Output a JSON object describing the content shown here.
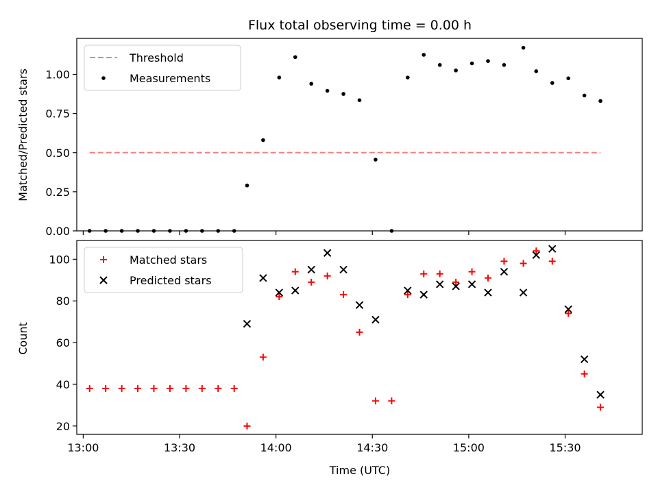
{
  "figure": {
    "title": "Flux total observing time = 0.00 h",
    "xlabel": "Time (UTC)"
  },
  "chart_data": [
    {
      "type": "scatter",
      "ylabel": "Matched/Predicted stars",
      "x_axis": {
        "unit": "time",
        "range": [
          "12:58",
          "15:54"
        ],
        "tick_labels": [
          "13:00",
          "13:30",
          "14:00",
          "14:30",
          "15:00",
          "15:30"
        ],
        "tick_labels_shown": false
      },
      "ylim": [
        0,
        1.23
      ],
      "yticks": [
        0,
        0.25,
        0.5,
        0.75,
        1.0
      ],
      "ytick_labels": [
        "0.00",
        "0.25",
        "0.50",
        "0.75",
        "1.00"
      ],
      "legend": {
        "placement": "upper-left",
        "entries": [
          "Threshold",
          "Measurements"
        ]
      },
      "series": [
        {
          "name": "Threshold",
          "style": "dashed-line",
          "color": "#f08080",
          "x": [
            "13:02",
            "15:41"
          ],
          "y": [
            0.5,
            0.5
          ]
        },
        {
          "name": "Measurements",
          "style": "dot",
          "color": "#000000",
          "x": [
            "13:02",
            "13:07",
            "13:12",
            "13:17",
            "13:22",
            "13:27",
            "13:32",
            "13:37",
            "13:42",
            "13:47",
            "13:51",
            "13:56",
            "14:01",
            "14:06",
            "14:11",
            "14:16",
            "14:21",
            "14:26",
            "14:31",
            "14:36",
            "14:41",
            "14:46",
            "14:51",
            "14:56",
            "15:01",
            "15:06",
            "15:11",
            "15:17",
            "15:21",
            "15:26",
            "15:31",
            "15:36",
            "15:41"
          ],
          "y": [
            0,
            0,
            0,
            0,
            0,
            0,
            0,
            0,
            0,
            0,
            0.29,
            0.58,
            0.98,
            1.11,
            0.94,
            0.895,
            0.875,
            0.835,
            0.455,
            0,
            0.98,
            1.125,
            1.06,
            1.025,
            1.07,
            1.085,
            1.06,
            1.17,
            1.02,
            0.945,
            0.975,
            0.865,
            0.83
          ]
        }
      ]
    },
    {
      "type": "scatter",
      "ylabel": "Count",
      "x_axis": {
        "unit": "time",
        "range": [
          "12:58",
          "15:54"
        ],
        "tick_labels": [
          "13:00",
          "13:30",
          "14:00",
          "14:30",
          "15:00",
          "15:30"
        ]
      },
      "ylim": [
        16,
        109
      ],
      "yticks": [
        20,
        40,
        60,
        80,
        100
      ],
      "ytick_labels": [
        "20",
        "40",
        "60",
        "80",
        "100"
      ],
      "legend": {
        "placement": "upper-left",
        "entries": [
          "Matched stars",
          "Predicted stars"
        ]
      },
      "series": [
        {
          "name": "Matched stars",
          "marker": "plus",
          "color": "#ff0000",
          "x": [
            "13:02",
            "13:07",
            "13:12",
            "13:17",
            "13:22",
            "13:27",
            "13:32",
            "13:37",
            "13:42",
            "13:47",
            "13:51",
            "13:56",
            "14:01",
            "14:06",
            "14:11",
            "14:16",
            "14:21",
            "14:26",
            "14:31",
            "14:36",
            "14:41",
            "14:46",
            "14:51",
            "14:56",
            "15:01",
            "15:06",
            "15:11",
            "15:17",
            "15:21",
            "15:26",
            "15:31",
            "15:36",
            "15:41"
          ],
          "y": [
            38,
            38,
            38,
            38,
            38,
            38,
            38,
            38,
            38,
            38,
            20,
            53,
            82,
            94,
            89,
            92,
            83,
            65,
            32,
            32,
            83,
            93,
            93,
            89,
            94,
            91,
            99,
            98,
            104,
            99,
            74,
            45,
            29
          ]
        },
        {
          "name": "Predicted stars",
          "marker": "x",
          "color": "#000000",
          "x": [
            "13:51",
            "13:56",
            "14:01",
            "14:06",
            "14:11",
            "14:16",
            "14:21",
            "14:26",
            "14:31",
            "14:41",
            "14:46",
            "14:51",
            "14:56",
            "15:01",
            "15:06",
            "15:11",
            "15:17",
            "15:21",
            "15:26",
            "15:31",
            "15:36",
            "15:41"
          ],
          "y": [
            69,
            91,
            84,
            85,
            95,
            103,
            95,
            78,
            71,
            85,
            83,
            88,
            87,
            88,
            84,
            94,
            84,
            102,
            105,
            76,
            52,
            35
          ]
        }
      ]
    }
  ]
}
